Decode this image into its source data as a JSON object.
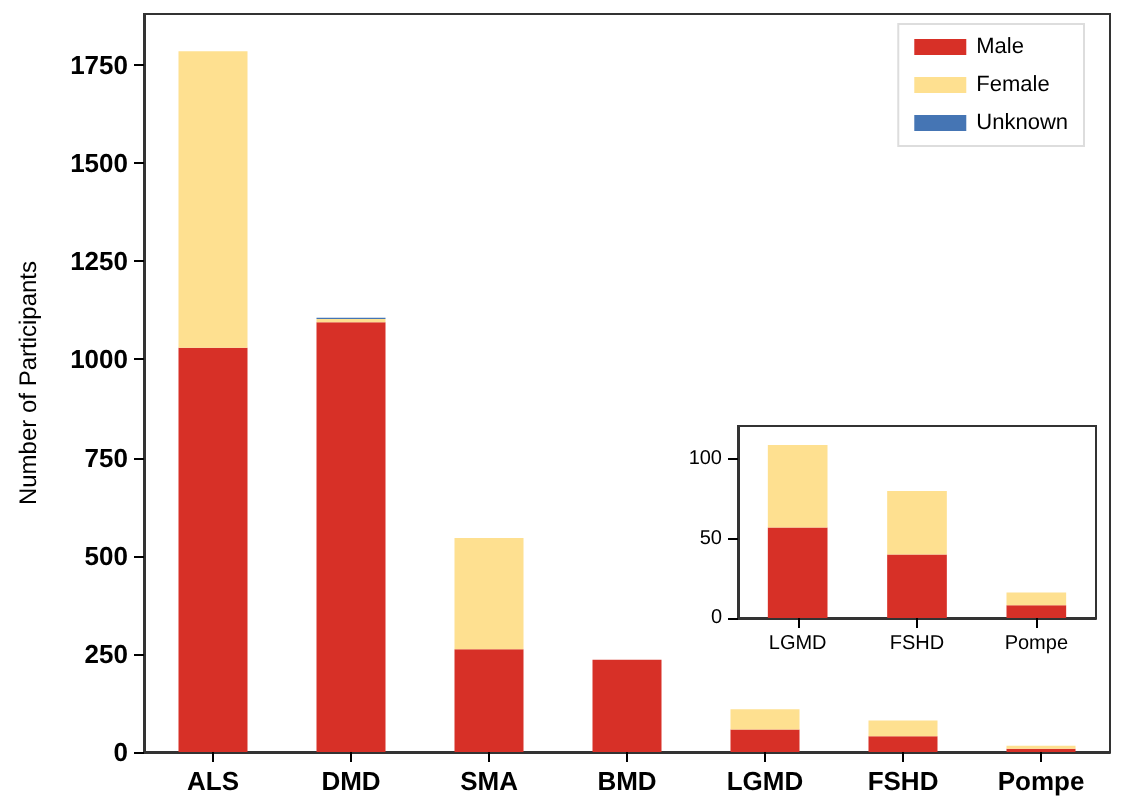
{
  "chart_data": [
    {
      "type": "bar",
      "ylabel": "Number of Participants",
      "categories": [
        "ALS",
        "DMD",
        "SMA",
        "BMD",
        "LGMD",
        "FSHD",
        "Pompe"
      ],
      "stacked": true,
      "series": [
        {
          "name": "Male",
          "color": "#d73027",
          "values": [
            1030,
            1095,
            262,
            235,
            57,
            40,
            8
          ]
        },
        {
          "name": "Female",
          "color": "#fee090",
          "values": [
            755,
            8,
            283,
            0,
            52,
            40,
            8
          ]
        },
        {
          "name": "Unknown",
          "color": "#4575b4",
          "values": [
            0,
            3,
            0,
            0,
            0,
            0,
            0
          ]
        }
      ],
      "ylim": [
        0,
        1880
      ],
      "yticks": [
        0,
        250,
        500,
        750,
        1000,
        1250,
        1500,
        1750
      ],
      "grid": false,
      "legend": "top right"
    },
    {
      "type": "bar",
      "categories": [
        "LGMD",
        "FSHD",
        "Pompe"
      ],
      "stacked": true,
      "series": [
        {
          "color": "#d73027",
          "values": [
            57,
            40,
            8
          ]
        },
        {
          "color": "#fee090",
          "values": [
            52,
            40,
            8
          ]
        }
      ],
      "ylim": [
        0,
        121
      ],
      "yticks": [
        0,
        50,
        100
      ],
      "grid": false,
      "legend": false
    }
  ]
}
